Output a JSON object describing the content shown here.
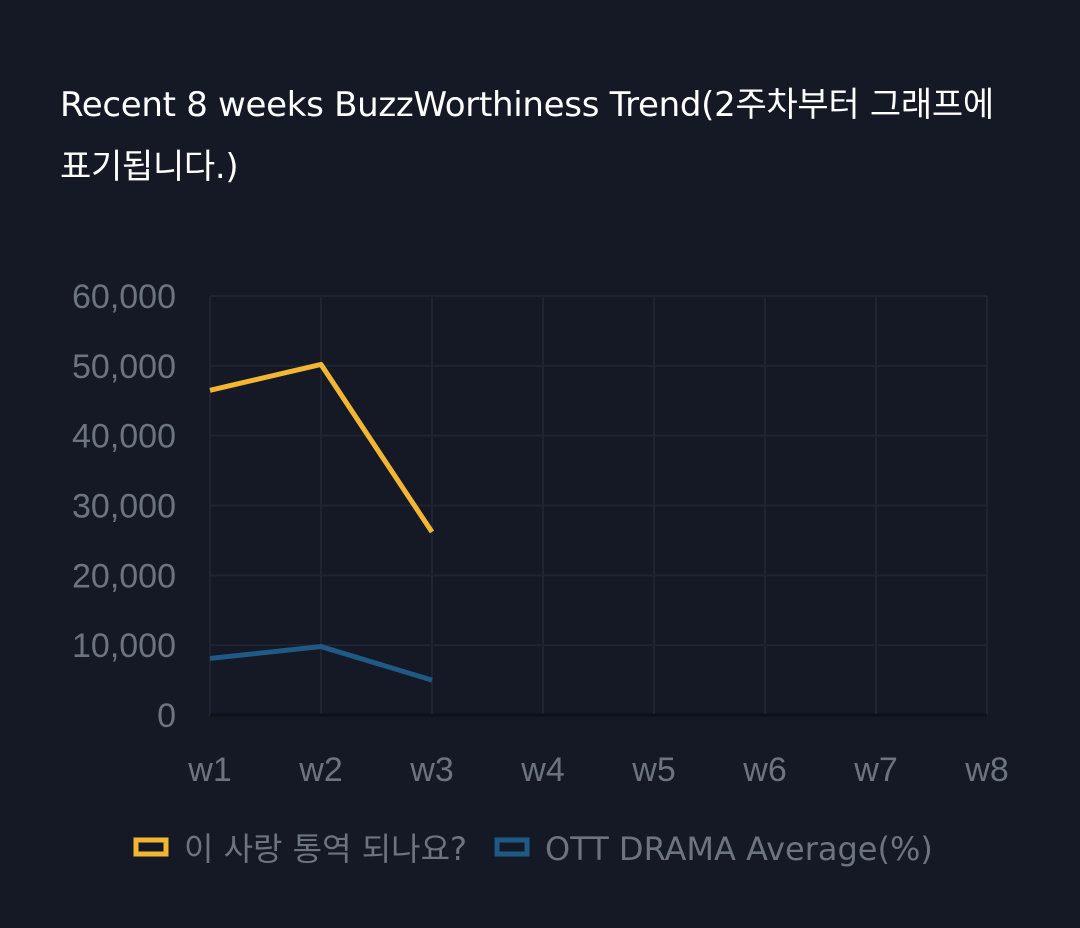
{
  "title": "Recent 8 weeks BuzzWorthiness Trend(2주차부터 그래프에 표기됩니다.)",
  "chart_data": {
    "type": "line",
    "title": "Recent 8 weeks BuzzWorthiness Trend(2주차부터 그래프에 표기됩니다.)",
    "xlabel": "",
    "ylabel": "",
    "categories": [
      "w1",
      "w2",
      "w3",
      "w4",
      "w5",
      "w6",
      "w7",
      "w8"
    ],
    "ylim": [
      0,
      60000
    ],
    "yticks": [
      0,
      10000,
      20000,
      30000,
      40000,
      50000,
      60000
    ],
    "ytick_labels": [
      "0",
      "10,000",
      "20,000",
      "30,000",
      "40,000",
      "50,000",
      "60,000"
    ],
    "grid": true,
    "legend_position": "bottom",
    "series": [
      {
        "name": "이 사랑 통역 되나요?",
        "color": "#f2b632",
        "values": [
          46500,
          50200,
          26200,
          null,
          null,
          null,
          null,
          null
        ]
      },
      {
        "name": "OTT DRAMA Average(%)",
        "color": "#1f5a85",
        "values": [
          8100,
          9800,
          5000,
          null,
          null,
          null,
          null,
          null
        ]
      }
    ]
  },
  "colors": {
    "background": "#141925",
    "grid": "#1f2430",
    "axis_text": "#6e7380",
    "title_text": "#ffffff"
  }
}
